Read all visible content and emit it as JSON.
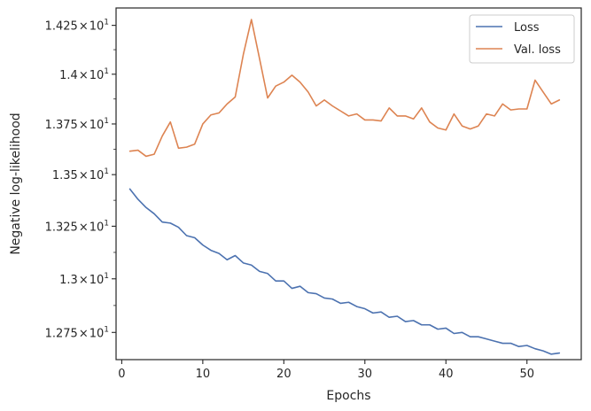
{
  "chart_data": {
    "type": "line",
    "xlabel": "Epochs",
    "ylabel": "Negative log-likelihood",
    "xlim": [
      -0.7,
      56.7
    ],
    "ylim": [
      12.625,
      14.34
    ],
    "y_scale": "log",
    "grid": false,
    "legend_position": "top-right",
    "x_ticks": [
      {
        "value": 0,
        "label": "0"
      },
      {
        "value": 10,
        "label": "10"
      },
      {
        "value": 20,
        "label": "20"
      },
      {
        "value": 30,
        "label": "30"
      },
      {
        "value": 40,
        "label": "40"
      },
      {
        "value": 50,
        "label": "50"
      }
    ],
    "y_ticks": [
      {
        "value": 12.75,
        "mantissa": "1.275",
        "times": "×",
        "base": "10",
        "exp": "1"
      },
      {
        "value": 13.0,
        "mantissa": "1.3",
        "times": "×",
        "base": "10",
        "exp": "1"
      },
      {
        "value": 13.25,
        "mantissa": "1.325",
        "times": "×",
        "base": "10",
        "exp": "1"
      },
      {
        "value": 13.5,
        "mantissa": "1.35",
        "times": "×",
        "base": "10",
        "exp": "1"
      },
      {
        "value": 13.75,
        "mantissa": "1.375",
        "times": "×",
        "base": "10",
        "exp": "1"
      },
      {
        "value": 14.0,
        "mantissa": "1.4",
        "times": "×",
        "base": "10",
        "exp": "1"
      },
      {
        "value": 14.25,
        "mantissa": "1.425",
        "times": "×",
        "base": "10",
        "exp": "1"
      }
    ],
    "x": [
      1,
      2,
      3,
      4,
      5,
      6,
      7,
      8,
      9,
      10,
      11,
      12,
      13,
      14,
      15,
      16,
      17,
      18,
      19,
      20,
      21,
      22,
      23,
      24,
      25,
      26,
      27,
      28,
      29,
      30,
      31,
      32,
      33,
      34,
      35,
      36,
      37,
      38,
      39,
      40,
      41,
      42,
      43,
      44,
      45,
      46,
      47,
      48,
      49,
      50,
      51,
      52,
      53,
      54
    ],
    "series": [
      {
        "name": "Loss",
        "color": "#4c72b0",
        "values": [
          13.43,
          13.38,
          13.34,
          13.31,
          13.27,
          13.265,
          13.245,
          13.205,
          13.195,
          13.16,
          13.135,
          13.12,
          13.09,
          13.11,
          13.075,
          13.065,
          13.035,
          13.025,
          12.99,
          12.99,
          12.955,
          12.965,
          12.935,
          12.93,
          12.91,
          12.905,
          12.885,
          12.89,
          12.87,
          12.86,
          12.84,
          12.845,
          12.82,
          12.825,
          12.8,
          12.805,
          12.785,
          12.785,
          12.765,
          12.77,
          12.745,
          12.75,
          12.73,
          12.73,
          12.72,
          12.71,
          12.7,
          12.7,
          12.685,
          12.69,
          12.675,
          12.665,
          12.65,
          12.655
        ]
      },
      {
        "name": "Val. loss",
        "color": "#dd8452",
        "values": [
          13.615,
          13.62,
          13.59,
          13.6,
          13.69,
          13.76,
          13.63,
          13.635,
          13.65,
          13.75,
          13.795,
          13.805,
          13.85,
          13.885,
          14.1,
          14.28,
          14.08,
          13.88,
          13.94,
          13.96,
          13.995,
          13.96,
          13.91,
          13.84,
          13.87,
          13.84,
          13.815,
          13.79,
          13.8,
          13.77,
          13.77,
          13.765,
          13.83,
          13.79,
          13.79,
          13.775,
          13.83,
          13.76,
          13.73,
          13.72,
          13.8,
          13.74,
          13.725,
          13.74,
          13.8,
          13.79,
          13.85,
          13.82,
          13.825,
          13.825,
          13.97,
          13.91,
          13.85,
          13.87
        ]
      }
    ]
  }
}
